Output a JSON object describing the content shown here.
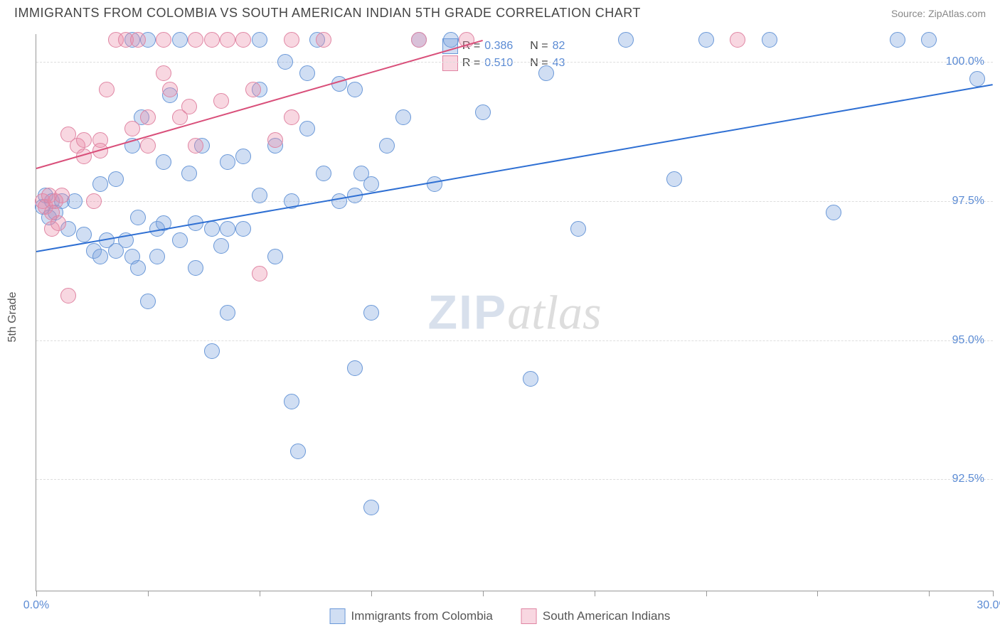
{
  "title": "IMMIGRANTS FROM COLOMBIA VS SOUTH AMERICAN INDIAN 5TH GRADE CORRELATION CHART",
  "source": "Source: ZipAtlas.com",
  "ylabel": "5th Grade",
  "watermark": {
    "part1": "ZIP",
    "part2": "atlas"
  },
  "chart": {
    "type": "scatter",
    "xlim": [
      0,
      30
    ],
    "ylim": [
      90.5,
      100.5
    ],
    "xtick_positions": [
      0,
      3.5,
      7,
      10.5,
      14,
      17.5,
      21,
      24.5,
      28,
      30
    ],
    "xtick_labels_shown": {
      "0": "0.0%",
      "30": "30.0%"
    },
    "ytick_positions": [
      92.5,
      95.0,
      97.5,
      100.0
    ],
    "ytick_labels": [
      "92.5%",
      "95.0%",
      "97.5%",
      "100.0%"
    ],
    "background_color": "#ffffff",
    "grid_color": "#dddddd",
    "axis_color": "#999999",
    "tick_label_color": "#5b8bd4",
    "marker_radius": 11,
    "marker_stroke_width": 1,
    "series": [
      {
        "id": "colombia",
        "label": "Immigrants from Colombia",
        "fill": "rgba(120,160,220,0.35)",
        "stroke": "#6a98d8",
        "trend_color": "#2e6fd3",
        "R": "0.386",
        "N": "82",
        "trend": {
          "x1": 0,
          "y1": 96.6,
          "x2": 30,
          "y2": 99.6
        },
        "points": [
          [
            0.2,
            97.4
          ],
          [
            0.3,
            97.6
          ],
          [
            0.4,
            97.2
          ],
          [
            0.5,
            97.5
          ],
          [
            0.6,
            97.3
          ],
          [
            0.8,
            97.5
          ],
          [
            1.0,
            97.0
          ],
          [
            1.2,
            97.5
          ],
          [
            1.5,
            96.9
          ],
          [
            1.8,
            96.6
          ],
          [
            2.0,
            97.8
          ],
          [
            2.0,
            96.5
          ],
          [
            2.2,
            96.8
          ],
          [
            2.5,
            97.9
          ],
          [
            2.5,
            96.6
          ],
          [
            2.8,
            96.8
          ],
          [
            3.0,
            100.4
          ],
          [
            3.0,
            98.5
          ],
          [
            3.0,
            96.5
          ],
          [
            3.2,
            97.2
          ],
          [
            3.2,
            96.3
          ],
          [
            3.3,
            99.0
          ],
          [
            3.5,
            100.4
          ],
          [
            3.5,
            95.7
          ],
          [
            3.8,
            97.0
          ],
          [
            3.8,
            96.5
          ],
          [
            4.0,
            98.2
          ],
          [
            4.0,
            97.1
          ],
          [
            4.2,
            99.4
          ],
          [
            4.5,
            100.4
          ],
          [
            4.5,
            96.8
          ],
          [
            4.8,
            98.0
          ],
          [
            5.0,
            96.3
          ],
          [
            5.0,
            97.1
          ],
          [
            5.2,
            98.5
          ],
          [
            5.5,
            97.0
          ],
          [
            5.5,
            94.8
          ],
          [
            5.8,
            96.7
          ],
          [
            6.0,
            98.2
          ],
          [
            6.0,
            97.0
          ],
          [
            6.0,
            95.5
          ],
          [
            6.5,
            98.3
          ],
          [
            6.5,
            97.0
          ],
          [
            7.0,
            99.5
          ],
          [
            7.0,
            100.4
          ],
          [
            7.0,
            97.6
          ],
          [
            7.5,
            98.5
          ],
          [
            7.5,
            96.5
          ],
          [
            7.8,
            100.0
          ],
          [
            8.0,
            97.5
          ],
          [
            8.0,
            93.9
          ],
          [
            8.2,
            93.0
          ],
          [
            8.5,
            99.8
          ],
          [
            8.5,
            98.8
          ],
          [
            8.8,
            100.4
          ],
          [
            9.0,
            98.0
          ],
          [
            9.5,
            97.5
          ],
          [
            9.5,
            99.6
          ],
          [
            10.0,
            99.5
          ],
          [
            10.0,
            97.6
          ],
          [
            10.0,
            94.5
          ],
          [
            10.2,
            98.0
          ],
          [
            10.5,
            97.8
          ],
          [
            10.5,
            95.5
          ],
          [
            10.5,
            92.0
          ],
          [
            11.0,
            98.5
          ],
          [
            11.5,
            99.0
          ],
          [
            12.0,
            100.4
          ],
          [
            12.5,
            97.8
          ],
          [
            13.0,
            100.4
          ],
          [
            14.0,
            99.1
          ],
          [
            15.5,
            94.3
          ],
          [
            16.0,
            99.8
          ],
          [
            17.0,
            97.0
          ],
          [
            18.5,
            100.4
          ],
          [
            20.0,
            97.9
          ],
          [
            21.0,
            100.4
          ],
          [
            23.0,
            100.4
          ],
          [
            25.0,
            97.3
          ],
          [
            27.0,
            100.4
          ],
          [
            28.0,
            100.4
          ],
          [
            29.5,
            99.7
          ]
        ]
      },
      {
        "id": "sai",
        "label": "South American Indians",
        "fill": "rgba(235,140,170,0.35)",
        "stroke": "#e085a3",
        "trend_color": "#d94f7a",
        "R": "0.510",
        "N": "43",
        "trend": {
          "x1": 0,
          "y1": 98.1,
          "x2": 14,
          "y2": 100.4
        },
        "points": [
          [
            0.2,
            97.5
          ],
          [
            0.3,
            97.4
          ],
          [
            0.4,
            97.6
          ],
          [
            0.5,
            97.3
          ],
          [
            0.5,
            97.0
          ],
          [
            0.6,
            97.5
          ],
          [
            0.7,
            97.1
          ],
          [
            0.8,
            97.6
          ],
          [
            1.0,
            98.7
          ],
          [
            1.0,
            95.8
          ],
          [
            1.3,
            98.5
          ],
          [
            1.5,
            98.6
          ],
          [
            1.5,
            98.3
          ],
          [
            1.8,
            97.5
          ],
          [
            2.0,
            98.6
          ],
          [
            2.0,
            98.4
          ],
          [
            2.2,
            99.5
          ],
          [
            2.5,
            100.4
          ],
          [
            2.8,
            100.4
          ],
          [
            3.0,
            98.8
          ],
          [
            3.2,
            100.4
          ],
          [
            3.5,
            99.0
          ],
          [
            3.5,
            98.5
          ],
          [
            4.0,
            100.4
          ],
          [
            4.0,
            99.8
          ],
          [
            4.2,
            99.5
          ],
          [
            4.5,
            99.0
          ],
          [
            4.8,
            99.2
          ],
          [
            5.0,
            100.4
          ],
          [
            5.0,
            98.5
          ],
          [
            5.5,
            100.4
          ],
          [
            5.8,
            99.3
          ],
          [
            6.0,
            100.4
          ],
          [
            6.5,
            100.4
          ],
          [
            6.8,
            99.5
          ],
          [
            7.0,
            96.2
          ],
          [
            7.5,
            98.6
          ],
          [
            8.0,
            100.4
          ],
          [
            8.0,
            99.0
          ],
          [
            9.0,
            100.4
          ],
          [
            12.0,
            100.4
          ],
          [
            13.5,
            100.4
          ],
          [
            22.0,
            100.4
          ]
        ]
      }
    ]
  },
  "legend_top": {
    "rows": [
      {
        "swatch_fill": "rgba(120,160,220,0.35)",
        "swatch_stroke": "#6a98d8",
        "R_label": "R =",
        "R": "0.386",
        "N_label": "N =",
        "N": "82"
      },
      {
        "swatch_fill": "rgba(235,140,170,0.35)",
        "swatch_stroke": "#e085a3",
        "R_label": "R =",
        "R": "0.510",
        "N_label": "N =",
        "N": "43"
      }
    ]
  },
  "legend_bottom": {
    "items": [
      {
        "swatch_fill": "rgba(120,160,220,0.35)",
        "swatch_stroke": "#6a98d8",
        "label": "Immigrants from Colombia"
      },
      {
        "swatch_fill": "rgba(235,140,170,0.35)",
        "swatch_stroke": "#e085a3",
        "label": "South American Indians"
      }
    ]
  }
}
